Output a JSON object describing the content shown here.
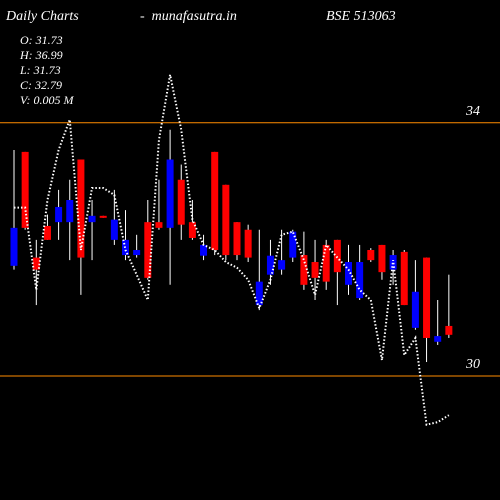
{
  "header": {
    "title": "Daily Charts",
    "site": "-  munafasutra.in",
    "symbol": "BSE 513063",
    "info": [
      "O: 31.73",
      "H: 36.99",
      "L: 31.73",
      "C: 32.79",
      "V: 0.005 M"
    ]
  },
  "chart_data": {
    "type": "candlestick",
    "open": [
      31.74,
      33.54,
      31.87,
      32.37,
      32.43,
      32.43,
      33.42,
      32.43,
      32.53,
      32.15,
      31.91,
      31.91,
      32.43,
      32.43,
      32.34,
      33.1,
      32.43,
      31.9,
      33.54,
      33.02,
      32.43,
      32.31,
      31.12,
      31.6,
      31.68,
      31.87,
      31.91,
      31.8,
      32.07,
      32.15,
      31.44,
      31.23,
      31.99,
      32.07,
      31.68,
      31.96,
      30.76,
      31.87,
      30.54,
      30.79
    ],
    "high": [
      33.57,
      33.54,
      32.15,
      32.55,
      32.94,
      33.1,
      33.42,
      32.78,
      32.53,
      32.94,
      32.62,
      32.23,
      32.78,
      33.1,
      33.89,
      33.34,
      32.78,
      32.23,
      33.54,
      33.02,
      32.43,
      32.39,
      32.31,
      32.15,
      32.31,
      32.31,
      32.28,
      32.15,
      32.15,
      32.15,
      32.07,
      32.07,
      32.02,
      32.07,
      31.99,
      31.99,
      31.83,
      31.87,
      31.2,
      31.6
    ],
    "low": [
      31.68,
      32.31,
      31.12,
      32.15,
      32.15,
      31.83,
      31.28,
      31.83,
      32.5,
      32.07,
      31.83,
      31.87,
      31.52,
      32.31,
      31.44,
      32.15,
      32.15,
      31.83,
      31.91,
      31.83,
      31.83,
      31.8,
      31.04,
      31.44,
      31.6,
      31.8,
      31.36,
      31.2,
      31.36,
      31.12,
      31.28,
      31.2,
      31.8,
      31.52,
      31.44,
      31.12,
      30.73,
      30.22,
      30.49,
      30.6
    ],
    "close": [
      32.34,
      32.34,
      31.68,
      32.15,
      32.67,
      32.78,
      31.87,
      32.53,
      32.5,
      32.47,
      32.15,
      31.99,
      31.55,
      32.34,
      33.42,
      32.39,
      32.18,
      32.07,
      31.99,
      31.91,
      31.91,
      31.87,
      31.49,
      31.9,
      31.83,
      32.28,
      31.44,
      31.55,
      31.49,
      31.64,
      31.8,
      31.8,
      31.83,
      31.64,
      31.91,
      31.12,
      31.33,
      30.6,
      30.63,
      30.65
    ],
    "line": [
      32.66,
      32.66,
      31.36,
      32.78,
      33.57,
      34.05,
      31.99,
      32.97,
      32.97,
      32.86,
      31.99,
      31.6,
      31.2,
      33.73,
      34.76,
      33.89,
      32.47,
      32.07,
      31.99,
      31.8,
      31.71,
      31.52,
      31.07,
      31.52,
      32.23,
      32.28,
      31.83,
      31.28,
      32.07,
      31.87,
      31.68,
      31.36,
      31.2,
      30.25,
      31.83,
      30.33,
      30.6,
      29.23,
      29.27,
      29.38
    ],
    "up_color": "#0000ff",
    "down_color": "#ff0000",
    "line_color": "#ffffff",
    "grid_color": "#ff8c00",
    "ylim": [
      28.04,
      35.94
    ],
    "yticks": [
      30,
      34
    ]
  }
}
